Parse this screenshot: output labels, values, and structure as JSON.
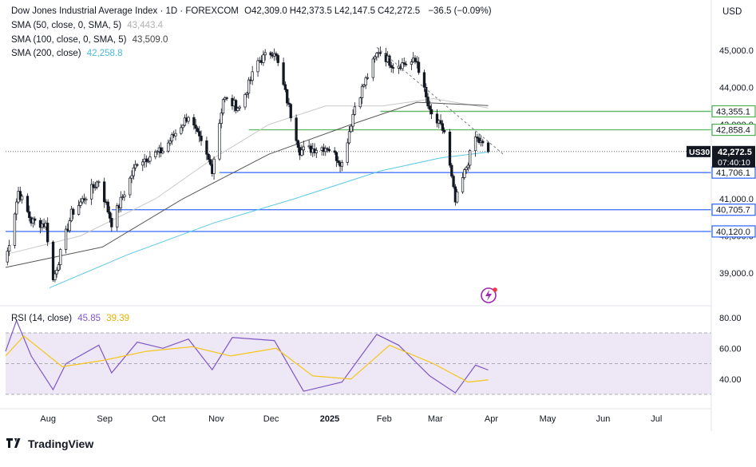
{
  "header": {
    "symbol_title": "Dow Jones Industrial Average Index · 1D · FOREXCOM",
    "ohlc": [
      {
        "label": "O",
        "value": "42,309.0"
      },
      {
        "label": "H",
        "value": "42,373.5"
      },
      {
        "label": "L",
        "value": "42,147.5"
      },
      {
        "label": "C",
        "value": "42,272.5"
      }
    ],
    "change": "−36.5 (−0.09%)",
    "currency": "USD",
    "indicators": [
      {
        "label": "SMA (50, close, 0, SMA, 5)",
        "value": "43,443.4",
        "color": "#c8c8c8"
      },
      {
        "label": "SMA (100, close, 0, SMA, 5)",
        "value": "43,509.0",
        "color": "#555555"
      },
      {
        "label": "SMA (200, close)",
        "value": "42,258.8",
        "color": "#5bc8e8"
      }
    ]
  },
  "rsi_header": {
    "label": "RSI (14, close)",
    "value": "45.85",
    "ma_value": "39.39",
    "color": "#7e57c2",
    "ma_color": "#f5c518"
  },
  "price_scale": [
    "45,000.0",
    "44,000.0",
    "43,000.0",
    "42,000.0",
    "41,000.0",
    "40,000.0",
    "39,000.0"
  ],
  "rsi_scale": [
    "80.00",
    "60.00",
    "40.00"
  ],
  "time_labels": [
    "Aug",
    "Sep",
    "Oct",
    "Nov",
    "Dec",
    "2025",
    "Feb",
    "Mar",
    "Apr",
    "May",
    "Jun",
    "Jul"
  ],
  "tags": {
    "symbol": "US30",
    "price": "42,272.5",
    "countdown": "07:40:10",
    "levels": [
      {
        "text": "43,355.1",
        "value": 43355.1,
        "kind": "green"
      },
      {
        "text": "42,858.4",
        "value": 42858.4,
        "kind": "green"
      },
      {
        "text": "41,706.1",
        "value": 41706.1,
        "kind": "blue"
      },
      {
        "text": "40,705.7",
        "value": 40705.7,
        "kind": "blue"
      },
      {
        "text": "40,120.0",
        "value": 40120.0,
        "kind": "blue"
      }
    ]
  },
  "colors": {
    "up": "#131722",
    "down": "#131722",
    "green_line": "#4caf50",
    "blue_line": "#2962ff",
    "rsi_band": "#ede7f6"
  },
  "branding": {
    "name": "TradingView"
  },
  "chart_data": [
    {
      "type": "candlestick",
      "title": "Dow Jones Industrial Average Index · 1D · FOREXCOM",
      "y_unit": "USD",
      "ylim": [
        38400,
        45700
      ],
      "x_range": [
        "2024-07-10",
        "2025-07-31"
      ],
      "grid": false,
      "horizontal_levels": [
        {
          "value": 43355.1,
          "from": "2025-01-31",
          "color": "#4caf50"
        },
        {
          "value": 42858.4,
          "from": "2024-11-20",
          "color": "#4caf50"
        },
        {
          "value": 41706.1,
          "from": "2024-11-04",
          "color": "#2962ff"
        },
        {
          "value": 40705.7,
          "from": "2024-09-06",
          "color": "#2962ff"
        },
        {
          "value": 40120.0,
          "from": "2024-07-10",
          "color": "#2962ff"
        }
      ],
      "trendline": {
        "from": [
          "2025-01-29",
          45080
        ],
        "to": [
          "2025-04-01",
          42280
        ],
        "style": "dashed"
      },
      "last_close": 42272.5,
      "anchors": [
        [
          "2024-07-10",
          39300
        ],
        [
          "2024-07-17",
          41200
        ],
        [
          "2024-07-24",
          40400
        ],
        [
          "2024-08-01",
          40300
        ],
        [
          "2024-08-05",
          38800
        ],
        [
          "2024-08-15",
          40600
        ],
        [
          "2024-08-30",
          41500
        ],
        [
          "2024-09-06",
          40350
        ],
        [
          "2024-09-20",
          42000
        ],
        [
          "2024-10-04",
          42300
        ],
        [
          "2024-10-18",
          43250
        ],
        [
          "2024-10-31",
          41800
        ],
        [
          "2024-11-06",
          43700
        ],
        [
          "2024-11-15",
          43450
        ],
        [
          "2024-11-25",
          44700
        ],
        [
          "2024-12-04",
          45000
        ],
        [
          "2024-12-18",
          42300
        ],
        [
          "2025-01-02",
          42400
        ],
        [
          "2025-01-10",
          41950
        ],
        [
          "2025-01-17",
          43500
        ],
        [
          "2025-01-30",
          45000
        ],
        [
          "2025-02-07",
          44600
        ],
        [
          "2025-02-20",
          44700
        ],
        [
          "2025-02-27",
          43300
        ],
        [
          "2025-03-07",
          42800
        ],
        [
          "2025-03-13",
          40900
        ],
        [
          "2025-03-24",
          42650
        ],
        [
          "2025-03-31",
          42272
        ]
      ],
      "sma": [
        {
          "name": "SMA (50, close, 0, SMA, 5)",
          "color": "#c8c8c8",
          "points": [
            [
              "2024-07-10",
              39500
            ],
            [
              "2024-08-20",
              40000
            ],
            [
              "2024-09-30",
              41000
            ],
            [
              "2024-11-01",
              42100
            ],
            [
              "2024-12-01",
              43000
            ],
            [
              "2025-01-01",
              43500
            ],
            [
              "2025-02-01",
              43500
            ],
            [
              "2025-03-01",
              43700
            ],
            [
              "2025-03-31",
              43443
            ]
          ]
        },
        {
          "name": "SMA (100, close, 0, SMA, 5)",
          "color": "#555555",
          "points": [
            [
              "2024-07-10",
              39150
            ],
            [
              "2024-09-01",
              39700
            ],
            [
              "2024-10-15",
              41000
            ],
            [
              "2024-12-01",
              42200
            ],
            [
              "2025-01-15",
              43000
            ],
            [
              "2025-02-20",
              43600
            ],
            [
              "2025-03-31",
              43509
            ]
          ]
        },
        {
          "name": "SMA (200, close)",
          "color": "#5bc8e8",
          "points": [
            [
              "2024-08-03",
              38600
            ],
            [
              "2024-09-15",
              39500
            ],
            [
              "2024-11-01",
              40350
            ],
            [
              "2024-12-15",
              41000
            ],
            [
              "2025-01-31",
              41750
            ],
            [
              "2025-03-05",
              42100
            ],
            [
              "2025-03-31",
              42259
            ]
          ]
        }
      ]
    },
    {
      "type": "line",
      "title": "RSI (14, close)",
      "ylim": [
        25,
        85
      ],
      "bands": [
        30,
        50,
        70
      ],
      "series": [
        {
          "name": "RSI (14, close)",
          "color": "#7e57c2",
          "points": [
            [
              "2024-07-10",
              58
            ],
            [
              "2024-07-16",
              78
            ],
            [
              "2024-07-24",
              55
            ],
            [
              "2024-08-05",
              33
            ],
            [
              "2024-08-12",
              50
            ],
            [
              "2024-08-30",
              62
            ],
            [
              "2024-09-06",
              44
            ],
            [
              "2024-09-20",
              64
            ],
            [
              "2024-10-04",
              60
            ],
            [
              "2024-10-18",
              66
            ],
            [
              "2024-10-31",
              46
            ],
            [
              "2024-11-11",
              67
            ],
            [
              "2024-12-04",
              65
            ],
            [
              "2024-12-20",
              32
            ],
            [
              "2025-01-10",
              38
            ],
            [
              "2025-01-29",
              69
            ],
            [
              "2025-02-10",
              62
            ],
            [
              "2025-02-27",
              42
            ],
            [
              "2025-03-13",
              31
            ],
            [
              "2025-03-24",
              49
            ],
            [
              "2025-03-31",
              45.85
            ]
          ]
        },
        {
          "name": "RSI MA",
          "color": "#f5c518",
          "points": [
            [
              "2024-07-10",
              55
            ],
            [
              "2024-07-20",
              68
            ],
            [
              "2024-08-10",
              48
            ],
            [
              "2024-09-01",
              52
            ],
            [
              "2024-09-25",
              58
            ],
            [
              "2024-10-20",
              61
            ],
            [
              "2024-11-10",
              55
            ],
            [
              "2024-12-05",
              60
            ],
            [
              "2024-12-25",
              42
            ],
            [
              "2025-01-15",
              40
            ],
            [
              "2025-02-05",
              62
            ],
            [
              "2025-03-01",
              50
            ],
            [
              "2025-03-20",
              38
            ],
            [
              "2025-03-31",
              39.39
            ]
          ]
        }
      ]
    }
  ]
}
